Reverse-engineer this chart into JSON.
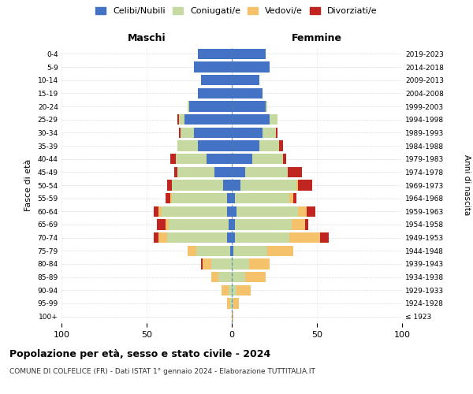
{
  "age_groups": [
    "100+",
    "95-99",
    "90-94",
    "85-89",
    "80-84",
    "75-79",
    "70-74",
    "65-69",
    "60-64",
    "55-59",
    "50-54",
    "45-49",
    "40-44",
    "35-39",
    "30-34",
    "25-29",
    "20-24",
    "15-19",
    "10-14",
    "5-9",
    "0-4"
  ],
  "birth_years": [
    "≤ 1923",
    "1924-1928",
    "1929-1933",
    "1934-1938",
    "1939-1943",
    "1944-1948",
    "1949-1953",
    "1954-1958",
    "1959-1963",
    "1964-1968",
    "1969-1973",
    "1974-1978",
    "1979-1983",
    "1984-1988",
    "1989-1993",
    "1994-1998",
    "1999-2003",
    "2004-2008",
    "2009-2013",
    "2014-2018",
    "2019-2023"
  ],
  "male": {
    "celibi": [
      0,
      0,
      0,
      0,
      0,
      1,
      3,
      2,
      3,
      3,
      5,
      10,
      15,
      20,
      22,
      28,
      25,
      20,
      18,
      22,
      20
    ],
    "coniugati": [
      0,
      1,
      2,
      8,
      12,
      20,
      35,
      35,
      38,
      32,
      30,
      22,
      18,
      12,
      8,
      3,
      1,
      0,
      0,
      0,
      0
    ],
    "vedovi": [
      0,
      2,
      4,
      4,
      5,
      5,
      5,
      2,
      2,
      1,
      0,
      0,
      0,
      0,
      0,
      0,
      0,
      0,
      0,
      0,
      0
    ],
    "divorziati": [
      0,
      0,
      0,
      0,
      1,
      0,
      3,
      5,
      3,
      3,
      3,
      2,
      3,
      0,
      1,
      1,
      0,
      0,
      0,
      0,
      0
    ]
  },
  "female": {
    "nubili": [
      0,
      0,
      0,
      0,
      0,
      1,
      2,
      2,
      3,
      2,
      5,
      8,
      12,
      16,
      18,
      22,
      20,
      18,
      16,
      22,
      20
    ],
    "coniugate": [
      0,
      1,
      3,
      8,
      10,
      20,
      32,
      33,
      36,
      32,
      33,
      25,
      18,
      12,
      8,
      5,
      1,
      0,
      0,
      0,
      0
    ],
    "vedove": [
      1,
      3,
      8,
      12,
      12,
      15,
      18,
      8,
      5,
      2,
      1,
      0,
      0,
      0,
      0,
      0,
      0,
      0,
      0,
      0,
      0
    ],
    "divorziate": [
      0,
      0,
      0,
      0,
      0,
      0,
      5,
      2,
      5,
      2,
      8,
      8,
      2,
      2,
      1,
      0,
      0,
      0,
      0,
      0,
      0
    ]
  },
  "colors": {
    "celibi": "#4472c4",
    "coniugati": "#c5d9a0",
    "vedovi": "#f5c26b",
    "divorziati": "#c0251f"
  },
  "xlim": 100,
  "title": "Popolazione per età, sesso e stato civile - 2024",
  "subtitle": "COMUNE DI COLFELICE (FR) - Dati ISTAT 1° gennaio 2024 - Elaborazione TUTTITALIA.IT",
  "ylabel_left": "Fasce di età",
  "ylabel_right": "Anni di nascita",
  "xlabel_left": "Maschi",
  "xlabel_right": "Femmine",
  "legend_labels": [
    "Celibi/Nubili",
    "Coniugati/e",
    "Vedovi/e",
    "Divorziati/e"
  ]
}
